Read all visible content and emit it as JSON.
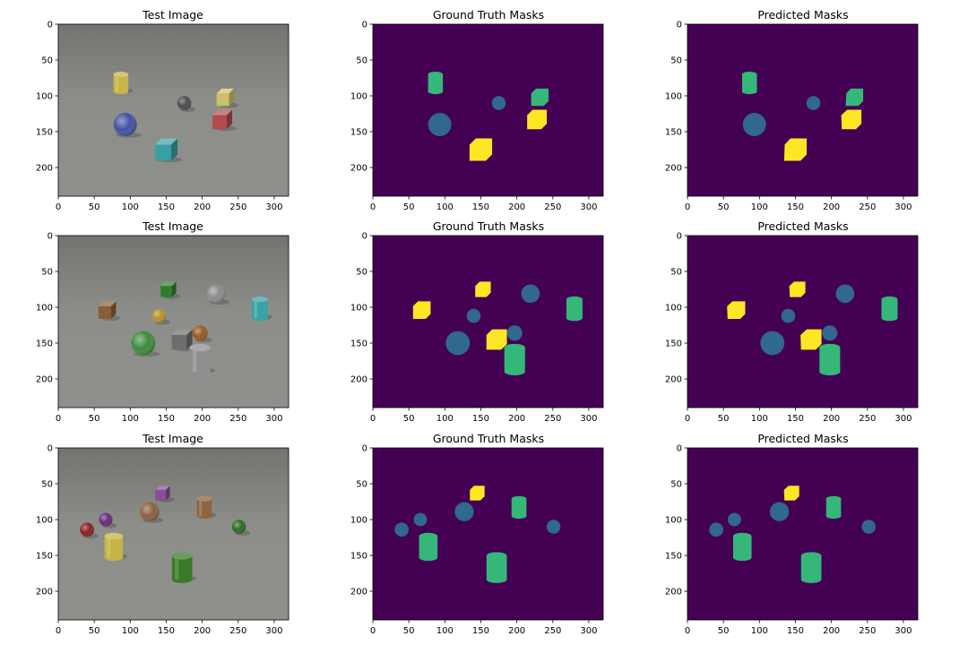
{
  "figure": {
    "rows": 3,
    "cols": 3,
    "panel_titles": [
      "Test Image",
      "Ground Truth Masks",
      "Predicted Masks"
    ]
  },
  "axes": {
    "x_ticks": [
      0,
      50,
      100,
      150,
      200,
      250,
      300
    ],
    "y_ticks": [
      0,
      50,
      100,
      150,
      200
    ],
    "x_range": [
      0,
      320
    ],
    "y_range": [
      0,
      240
    ]
  },
  "colors": {
    "mask_background": "#440154",
    "mask_class_1": "#31688e",
    "mask_class_2": "#35b779",
    "mask_class_3": "#fde725",
    "scene_background": "#7d7e7a"
  },
  "chart_data": [
    {
      "row": 0,
      "type": "heatmap",
      "objects": [
        {
          "kind": "cylinder",
          "material": "metal",
          "color": "#c9b548",
          "mask_class": 2,
          "x": 87,
          "y": 82
        },
        {
          "kind": "sphere",
          "material": "metal",
          "color": "#4b4b4b",
          "mask_class": 1,
          "x": 175,
          "y": 110
        },
        {
          "kind": "cube",
          "material": "rubber",
          "color": "#c9c26a",
          "mask_class": 2,
          "x": 232,
          "y": 102
        },
        {
          "kind": "cube",
          "material": "rubber",
          "color": "#b04c4c",
          "mask_class": 3,
          "x": 228,
          "y": 133
        },
        {
          "kind": "sphere",
          "material": "rubber",
          "color": "#4152a3",
          "mask_class": 1,
          "x": 93,
          "y": 140
        },
        {
          "kind": "cube",
          "material": "metal",
          "color": "#3a9fa4",
          "mask_class": 3,
          "x": 150,
          "y": 175
        }
      ]
    },
    {
      "row": 1,
      "type": "heatmap",
      "objects": [
        {
          "kind": "cube",
          "material": "metal",
          "color": "#2f7d2b",
          "mask_class": 3,
          "x": 153,
          "y": 75
        },
        {
          "kind": "sphere",
          "material": "rubber",
          "color": "#8b8b8b",
          "mask_class": 1,
          "x": 219,
          "y": 81
        },
        {
          "kind": "cylinder",
          "material": "metal",
          "color": "#3aa3a5",
          "mask_class": 2,
          "x": 280,
          "y": 102
        },
        {
          "kind": "cube",
          "material": "rubber",
          "color": "#8a5f37",
          "mask_class": 3,
          "x": 68,
          "y": 104
        },
        {
          "kind": "sphere",
          "material": "metal",
          "color": "#b98f2c",
          "mask_class": 1,
          "x": 140,
          "y": 112
        },
        {
          "kind": "sphere",
          "material": "metal",
          "color": "#9a5a20",
          "mask_class": 1,
          "x": 197,
          "y": 136
        },
        {
          "kind": "cube",
          "material": "metal",
          "color": "#6d6d6d",
          "mask_class": 3,
          "x": 172,
          "y": 145
        },
        {
          "kind": "sphere",
          "material": "rubber",
          "color": "#3f8a3c",
          "mask_class": 1,
          "x": 118,
          "y": 150
        },
        {
          "kind": "cylinder",
          "material": "rubber",
          "color": "#8f8f8f",
          "mask_class": 2,
          "x": 197,
          "y": 173
        }
      ]
    },
    {
      "row": 2,
      "type": "heatmap",
      "objects": [
        {
          "kind": "cube",
          "material": "rubber",
          "color": "#8a4d97",
          "mask_class": 3,
          "x": 145,
          "y": 63
        },
        {
          "kind": "cylinder",
          "material": "rubber",
          "color": "#8e6540",
          "mask_class": 2,
          "x": 203,
          "y": 83
        },
        {
          "kind": "sphere",
          "material": "rubber",
          "color": "#8a6040",
          "mask_class": 1,
          "x": 127,
          "y": 89
        },
        {
          "kind": "sphere",
          "material": "metal",
          "color": "#6a2a7a",
          "mask_class": 1,
          "x": 66,
          "y": 100
        },
        {
          "kind": "sphere",
          "material": "metal",
          "color": "#8a1f1f",
          "mask_class": 1,
          "x": 40,
          "y": 114
        },
        {
          "kind": "sphere",
          "material": "metal",
          "color": "#2a6a23",
          "mask_class": 1,
          "x": 251,
          "y": 110
        },
        {
          "kind": "cylinder",
          "material": "metal",
          "color": "#c4b446",
          "mask_class": 2,
          "x": 77,
          "y": 138
        },
        {
          "kind": "cylinder",
          "material": "metal",
          "color": "#3a7a26",
          "mask_class": 2,
          "x": 172,
          "y": 167
        }
      ]
    }
  ]
}
